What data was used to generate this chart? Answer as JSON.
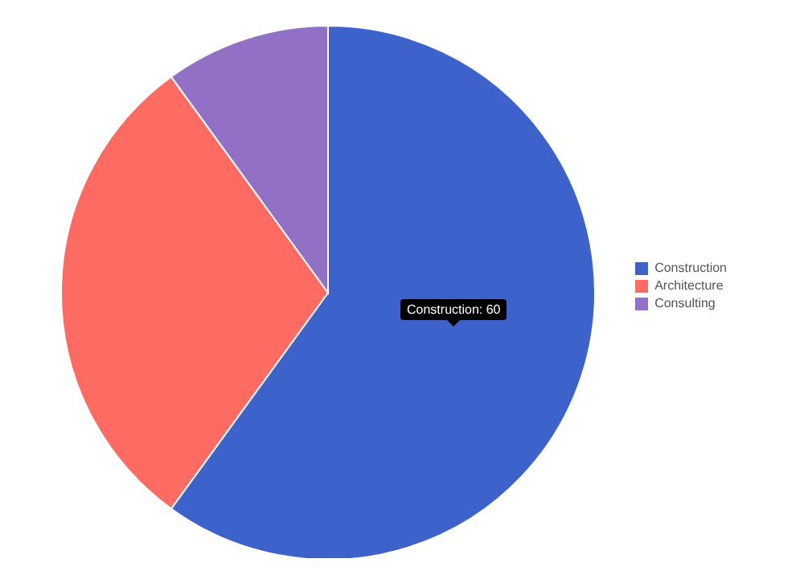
{
  "chart_data": {
    "type": "pie",
    "categories": [
      "Construction",
      "Architecture",
      "Consulting"
    ],
    "values": [
      60,
      30,
      10
    ],
    "colors": [
      "#3d62c9",
      "#fe6b63",
      "#9170c6"
    ],
    "legend": "right",
    "annotations": [
      "Construction: 60"
    ]
  }
}
